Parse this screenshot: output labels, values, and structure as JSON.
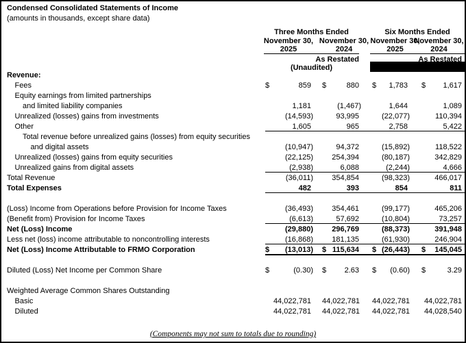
{
  "title": "Condensed Consolidated Statements of Income",
  "subtitle": "(amounts in thousands, except share data)",
  "header": {
    "group1": "Three Months Ended",
    "group2": "Six Months Ended",
    "dates": [
      "November 30,",
      "November 30,",
      "November 30,",
      "November 30,"
    ],
    "years": [
      "2025",
      "2024",
      "2025",
      "2024"
    ],
    "as_restated": "As Restated",
    "unaudited": "(Unaudited)",
    "redaction_bar": true
  },
  "table": {
    "rows": [
      {
        "label": "Revenue:",
        "indent": 0,
        "bold": true,
        "dollar": false,
        "values": null,
        "rule": null,
        "blank": false
      },
      {
        "label": "Fees",
        "indent": 1,
        "bold": false,
        "dollar": true,
        "values": [
          "859",
          "880",
          "1,783",
          "1,617"
        ],
        "rule": null,
        "blank": false
      },
      {
        "label": "Equity earnings from limited partnerships",
        "indent": 1,
        "bold": false,
        "dollar": false,
        "values": null,
        "rule": null,
        "blank": false
      },
      {
        "label": "and limited liability companies",
        "indent": 2,
        "bold": false,
        "dollar": false,
        "values": [
          "1,181",
          "(1,467)",
          "1,644",
          "1,089"
        ],
        "rule": null,
        "blank": false
      },
      {
        "label": "Unrealized (losses) gains from investments",
        "indent": 1,
        "bold": false,
        "dollar": false,
        "values": [
          "(14,593)",
          "93,995",
          "(22,077)",
          "110,394"
        ],
        "rule": null,
        "blank": false
      },
      {
        "label": "Other",
        "indent": 1,
        "bold": false,
        "dollar": false,
        "values": [
          "1,605",
          "965",
          "2,758",
          "5,422"
        ],
        "rule": "single",
        "blank": false
      },
      {
        "label": "Total revenue before unrealized gains (losses) from equity securities",
        "indent": 2,
        "bold": false,
        "dollar": false,
        "values": null,
        "rule": null,
        "blank": false
      },
      {
        "label": "and digital assets",
        "indent": 3,
        "bold": false,
        "dollar": false,
        "values": [
          "(10,947)",
          "94,372",
          "(15,892)",
          "118,522"
        ],
        "rule": null,
        "blank": false
      },
      {
        "label": "Unrealized (losses) gains from equity securities",
        "indent": 1,
        "bold": false,
        "dollar": false,
        "values": [
          "(22,125)",
          "254,394",
          "(80,187)",
          "342,829"
        ],
        "rule": null,
        "blank": false
      },
      {
        "label": "Unrealized gains from digital assets",
        "indent": 1,
        "bold": false,
        "dollar": false,
        "values": [
          "(2,938)",
          "6,088",
          "(2,244)",
          "4,666"
        ],
        "rule": "single",
        "blank": false
      },
      {
        "label": "Total Revenue",
        "indent": 0,
        "bold": false,
        "dollar": false,
        "values": [
          "(36,011)",
          "354,854",
          "(98,323)",
          "466,017"
        ],
        "rule": null,
        "blank": false
      },
      {
        "label": "Total Expenses",
        "indent": 0,
        "bold": true,
        "dollar": false,
        "values": [
          "482",
          "393",
          "854",
          "811"
        ],
        "rule": "single",
        "blank": false
      },
      {
        "label": "",
        "blank": true
      },
      {
        "label": "(Loss) Income from Operations before Provision for Income Taxes",
        "indent": 0,
        "bold": false,
        "dollar": false,
        "values": [
          "(36,493)",
          "354,461",
          "(99,177)",
          "465,206"
        ],
        "rule": null,
        "blank": false
      },
      {
        "label": "(Benefit from) Provision for Income Taxes",
        "indent": 0,
        "bold": false,
        "dollar": false,
        "values": [
          "(6,613)",
          "57,692",
          "(10,804)",
          "73,257"
        ],
        "rule": "single",
        "blank": false
      },
      {
        "label": "Net (Loss) Income",
        "indent": 0,
        "bold": true,
        "dollar": false,
        "values": [
          "(29,880)",
          "296,769",
          "(88,373)",
          "391,948"
        ],
        "rule": null,
        "blank": false
      },
      {
        "label": "Less net (loss) income attributable to noncontrolling interests",
        "indent": 0,
        "bold": false,
        "dollar": false,
        "values": [
          "(16,868)",
          "181,135",
          "(61,930)",
          "246,904"
        ],
        "rule": "single",
        "blank": false
      },
      {
        "label": "Net (Loss) Income Attributable to FRMO Corporation",
        "indent": 0,
        "bold": true,
        "dollar": true,
        "values": [
          "(13,013)",
          "115,634",
          "(26,443)",
          "145,045"
        ],
        "rule": "thick",
        "blank": false
      },
      {
        "label": "",
        "blank": true
      },
      {
        "label": "Diluted (Loss) Net Income per Common Share",
        "indent": 0,
        "bold": false,
        "dollar": true,
        "values": [
          "(0.30)",
          "2.63",
          "(0.60)",
          "3.29"
        ],
        "rule": null,
        "blank": false
      },
      {
        "label": "",
        "blank": true
      },
      {
        "label": "Weighted Average Common Shares Outstanding",
        "indent": 0,
        "bold": false,
        "dollar": false,
        "values": null,
        "rule": null,
        "blank": false
      },
      {
        "label": "Basic",
        "indent": 1,
        "bold": false,
        "dollar": false,
        "values": [
          "44,022,781",
          "44,022,781",
          "44,022,781",
          "44,022,781"
        ],
        "rule": null,
        "blank": false
      },
      {
        "label": "Diluted",
        "indent": 1,
        "bold": false,
        "dollar": false,
        "values": [
          "44,022,781",
          "44,022,781",
          "44,022,781",
          "44,028,540"
        ],
        "rule": null,
        "blank": false
      }
    ]
  },
  "footer": "(Components may not sum to totals due to rounding)"
}
